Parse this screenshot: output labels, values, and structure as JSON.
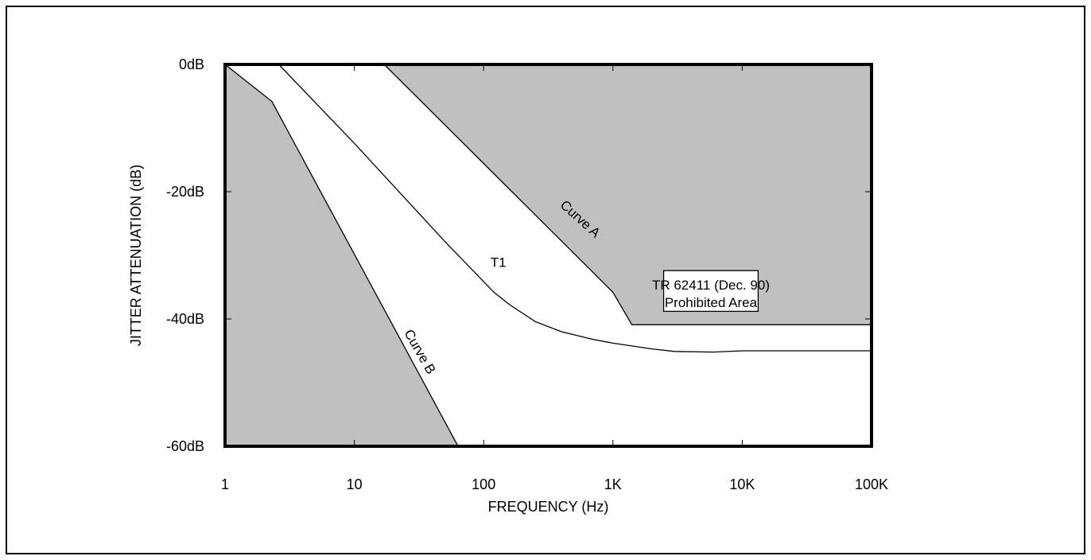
{
  "chart_data": {
    "type": "line",
    "title": "",
    "xlabel": "FREQUENCY (Hz)",
    "ylabel": "JITTER ATTENUATION (dB)",
    "x_scale": "log",
    "xlim": [
      1,
      100000
    ],
    "ylim": [
      -60,
      0
    ],
    "x_tick_values": [
      1,
      10,
      100,
      1000,
      10000,
      100000
    ],
    "x_tick_labels": [
      "1",
      "10",
      "100",
      "1K",
      "10K",
      "100K"
    ],
    "y_tick_values": [
      0,
      -20,
      -40,
      -60
    ],
    "y_tick_labels": [
      "0dB",
      "-20dB",
      "-40dB",
      "-60dB"
    ],
    "grid": false,
    "colors": {
      "prohibited": "#c0c0c0",
      "line": "#000000",
      "background": "#ffffff"
    },
    "series": [
      {
        "name": "T1",
        "x": [
          2.6,
          10,
          50,
          120,
          160,
          250,
          400,
          700,
          1000,
          2000,
          3000,
          6000,
          10000,
          100000
        ],
        "y": [
          0,
          -12.4,
          -27.8,
          -35.8,
          -37.8,
          -40.4,
          -42,
          -43.2,
          -43.8,
          -44.7,
          -45.1,
          -45.2,
          -45,
          -45
        ]
      },
      {
        "name": "Curve A",
        "x": [
          17,
          1000,
          1400,
          100000
        ],
        "y": [
          0,
          -35.8,
          -40.9,
          -40.9
        ]
      },
      {
        "name": "Curve B",
        "x": [
          1,
          2.3,
          63
        ],
        "y": [
          0,
          -5.8,
          -59.9
        ]
      }
    ],
    "annotations": [
      {
        "id": "t1",
        "text": "T1",
        "x": 130,
        "y": -31.8
      },
      {
        "id": "curve_a",
        "text": "Curve A",
        "x": 530,
        "y": -24.8,
        "rotate": 42
      },
      {
        "id": "curve_b",
        "text": "Curve B",
        "x": 30,
        "y": -45.5,
        "rotate": 60
      }
    ],
    "legend_box": {
      "lines": [
        "TR 62411 (Dec. 90)",
        "Prohibited Area"
      ],
      "x_range": [
        1400,
        10000
      ],
      "y_range": [
        -32.4,
        -38.8
      ]
    }
  }
}
